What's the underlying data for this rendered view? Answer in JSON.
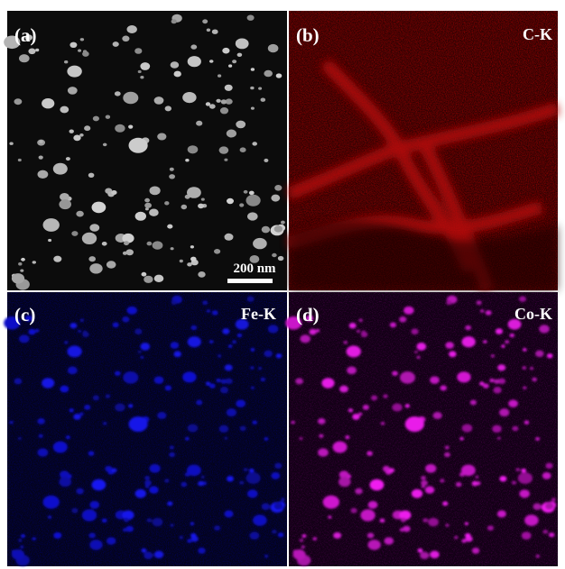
{
  "panels": [
    {
      "label": "(a)",
      "scale_bar": "200 nm"
    },
    {
      "label": "(b)",
      "element": "C-K"
    },
    {
      "label": "(c)",
      "element": "Fe-K"
    },
    {
      "label": "(d)",
      "element": "Co-K"
    }
  ]
}
